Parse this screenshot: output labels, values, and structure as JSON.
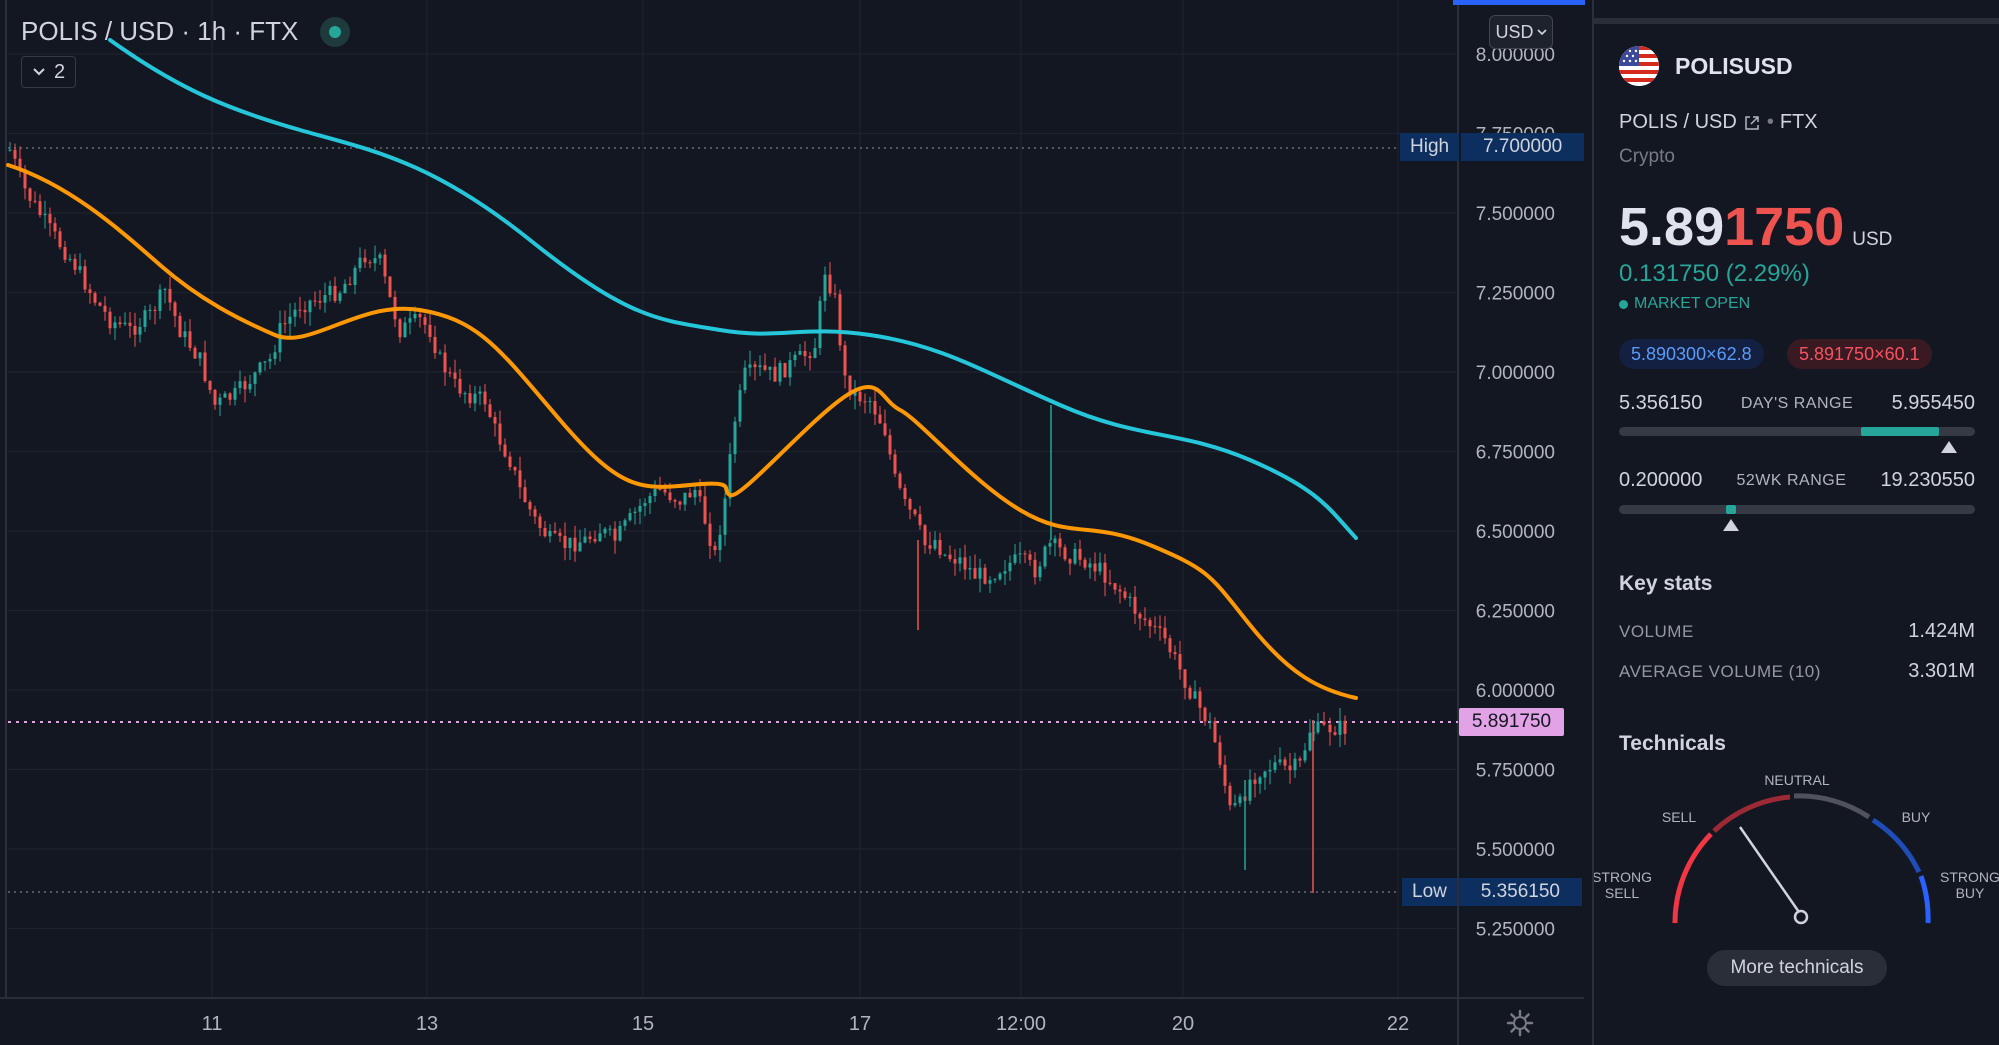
{
  "chart": {
    "symbol_title": "POLIS / USD · 1h · FTX",
    "indicator_count": "2",
    "currency_selector": "USD",
    "high_label": "High",
    "high_value": "7.700000",
    "low_label": "Low",
    "low_value": "5.356150",
    "last_price": "5.891750",
    "price_axis": [
      "8.000000",
      "7.750000",
      "7.500000",
      "7.250000",
      "7.000000",
      "6.750000",
      "6.500000",
      "6.250000",
      "6.000000",
      "5.750000",
      "5.500000",
      "5.250000"
    ],
    "time_axis": [
      "11",
      "13",
      "15",
      "17",
      "12:00",
      "20",
      "22"
    ],
    "colors": {
      "up": "#26a69a",
      "down": "#ef5350",
      "ma_fast": "#ff9800",
      "ma_slow": "#26c6da",
      "last_price_line": "#e1a2e6"
    }
  },
  "sidebar": {
    "symbol": "POLISUSD",
    "pair": "POLIS / USD",
    "exchange": "FTX",
    "category": "Crypto",
    "price_main": "5.89",
    "price_tail": "1750",
    "price_currency": "USD",
    "change": "0.131750 (2.29%)",
    "market_status": "MARKET OPEN",
    "bid": "5.890300×62.8",
    "ask": "5.891750×60.1",
    "days_range": {
      "low": "5.356150",
      "label": "DAY'S RANGE",
      "high": "5.955450",
      "position": 0.9
    },
    "wk52_range": {
      "low": "0.200000",
      "label": "52WK RANGE",
      "high": "19.230550",
      "position": 0.3
    },
    "key_stats_title": "Key stats",
    "stats": [
      {
        "label": "VOLUME",
        "value": "1.424M"
      },
      {
        "label": "AVERAGE VOLUME (10)",
        "value": "3.301M"
      }
    ],
    "technicals_title": "Technicals",
    "gauge_labels": {
      "strong_sell_1": "STRONG",
      "strong_sell_2": "SELL",
      "sell": "SELL",
      "neutral": "NEUTRAL",
      "buy": "BUY",
      "strong_buy_1": "STRONG",
      "strong_buy_2": "BUY"
    },
    "more_technicals": "More technicals"
  }
}
